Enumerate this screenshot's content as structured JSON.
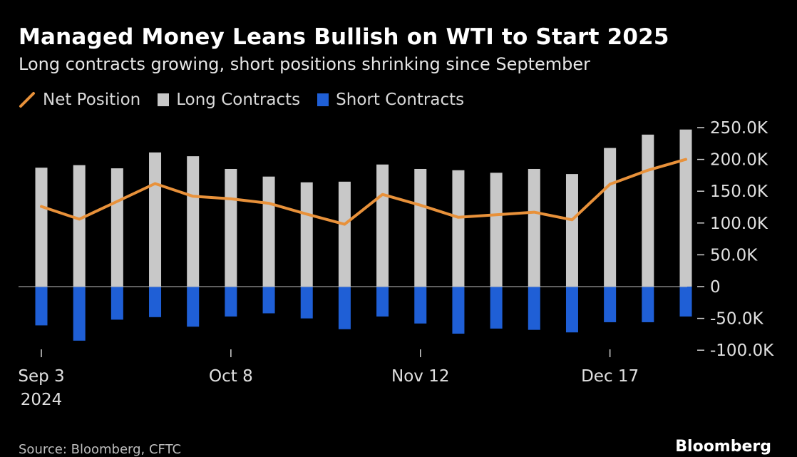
{
  "title": "Managed Money Leans Bullish on WTI to Start 2025",
  "subtitle": "Long contracts growing, short positions shrinking since September",
  "legend": [
    {
      "label": "Net Position",
      "color": "#e8913a"
    },
    {
      "label": "Long Contracts",
      "color": "#c8c8c8"
    },
    {
      "label": "Short Contracts",
      "color": "#1f5fd6"
    }
  ],
  "footer": {
    "source": "Source: Bloomberg, CFTC",
    "brand": "Bloomberg"
  },
  "chart_data": {
    "type": "bar",
    "title": "Managed Money Leans Bullish on WTI to Start 2025",
    "subtitle": "Long contracts growing, short positions shrinking since September",
    "x": [
      "2024-09-03",
      "2024-09-10",
      "2024-09-17",
      "2024-09-24",
      "2024-10-01",
      "2024-10-08",
      "2024-10-15",
      "2024-10-22",
      "2024-10-29",
      "2024-11-05",
      "2024-11-12",
      "2024-11-19",
      "2024-11-26",
      "2024-12-03",
      "2024-12-10",
      "2024-12-17",
      "2024-12-24",
      "2024-12-31"
    ],
    "series": [
      {
        "name": "Long Contracts",
        "kind": "bar",
        "color": "#c8c8c8",
        "values": [
          187000,
          191000,
          186000,
          211000,
          205000,
          185000,
          173000,
          164000,
          165000,
          192000,
          185000,
          183000,
          179000,
          185000,
          177000,
          218000,
          239000,
          247000
        ]
      },
      {
        "name": "Short Contracts",
        "kind": "bar",
        "color": "#1f5fd6",
        "values": [
          -61000,
          -85000,
          -52000,
          -48000,
          -63000,
          -47000,
          -42000,
          -50000,
          -67000,
          -47000,
          -58000,
          -74000,
          -66000,
          -68000,
          -72000,
          -56000,
          -56000,
          -47000
        ]
      },
      {
        "name": "Net Position",
        "kind": "line",
        "color": "#e8913a",
        "values": [
          126000,
          106000,
          134000,
          162000,
          142000,
          138000,
          131000,
          114000,
          98000,
          145000,
          128000,
          109000,
          113000,
          117000,
          105000,
          161000,
          183000,
          200000
        ]
      }
    ],
    "x_ticks": [
      {
        "label": "Sep 3",
        "sublabel": "2024",
        "index": 0
      },
      {
        "label": "Oct 8",
        "sublabel": "",
        "index": 5
      },
      {
        "label": "Nov 12",
        "sublabel": "",
        "index": 10
      },
      {
        "label": "Dec 17",
        "sublabel": "",
        "index": 15
      }
    ],
    "y_ticks": [
      {
        "value": 250000,
        "label": "250.0K"
      },
      {
        "value": 200000,
        "label": "200.0K"
      },
      {
        "value": 150000,
        "label": "150.0K"
      },
      {
        "value": 100000,
        "label": "100.0K"
      },
      {
        "value": 50000,
        "label": "50.0K"
      },
      {
        "value": 0,
        "label": "0"
      },
      {
        "value": -50000,
        "label": "-50.0K"
      },
      {
        "value": -100000,
        "label": "-100.0K"
      }
    ],
    "ylim": [
      -100000,
      250000
    ],
    "y_axis_side": "right",
    "grid": false,
    "legend_position": "top-left"
  }
}
